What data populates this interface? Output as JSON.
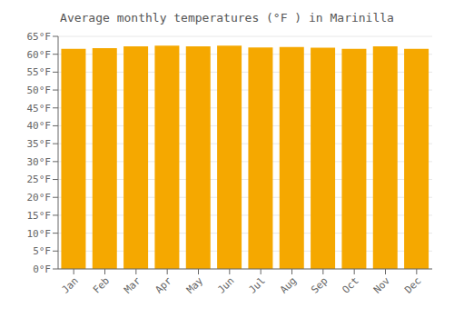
{
  "chart_data": {
    "type": "bar",
    "title": "Average monthly temperatures (°F ) in Marinilla",
    "categories": [
      "Jan",
      "Feb",
      "Mar",
      "Apr",
      "May",
      "Jun",
      "Jul",
      "Aug",
      "Sep",
      "Oct",
      "Nov",
      "Dec"
    ],
    "values": [
      61.5,
      61.7,
      62.2,
      62.4,
      62.2,
      62.4,
      61.9,
      62.0,
      61.8,
      61.5,
      62.2,
      61.5
    ],
    "color": "#F5A800",
    "ylim": [
      0,
      65
    ],
    "yticks": [
      {
        "value": 0,
        "label": "0°F"
      },
      {
        "value": 5,
        "label": "5°F"
      },
      {
        "value": 10,
        "label": "10°F"
      },
      {
        "value": 15,
        "label": "15°F"
      },
      {
        "value": 20,
        "label": "20°F"
      },
      {
        "value": 25,
        "label": "25°F"
      },
      {
        "value": 30,
        "label": "30°F"
      },
      {
        "value": 35,
        "label": "35°F"
      },
      {
        "value": 40,
        "label": "40°F"
      },
      {
        "value": 45,
        "label": "45°F"
      },
      {
        "value": 50,
        "label": "50°F"
      },
      {
        "value": 55,
        "label": "55°F"
      },
      {
        "value": 60,
        "label": "60°F"
      },
      {
        "value": 65,
        "label": "65°F"
      }
    ],
    "grid": true
  }
}
